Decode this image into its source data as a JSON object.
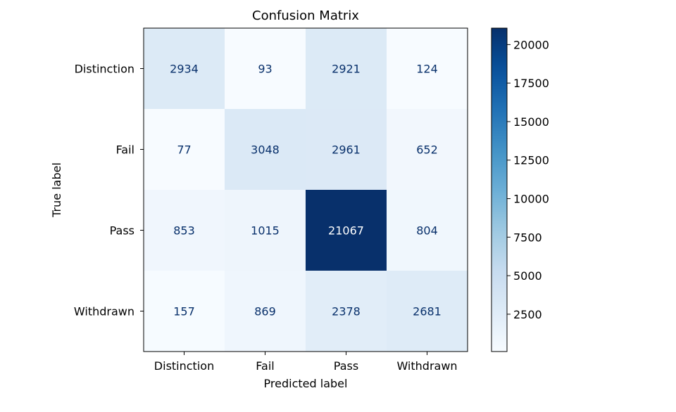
{
  "chart_data": {
    "type": "heatmap",
    "title": "Confusion Matrix",
    "xlabel": "Predicted label",
    "ylabel": "True label",
    "x_categories": [
      "Distinction",
      "Fail",
      "Pass",
      "Withdrawn"
    ],
    "y_categories": [
      "Distinction",
      "Fail",
      "Pass",
      "Withdrawn"
    ],
    "values": [
      [
        2934,
        93,
        2921,
        124
      ],
      [
        77,
        3048,
        2961,
        652
      ],
      [
        853,
        1015,
        21067,
        804
      ],
      [
        157,
        869,
        2378,
        2681
      ]
    ],
    "colormap": "Blues",
    "color_range": [
      77,
      21067
    ],
    "colorbar_ticks": [
      2500,
      5000,
      7500,
      10000,
      12500,
      15000,
      17500,
      20000
    ],
    "colorbar_tick_labels": [
      "2500",
      "5000",
      "7500",
      "10000",
      "12500",
      "15000",
      "17500",
      "20000"
    ],
    "text_color_light": "#ffffff",
    "text_color_dark": "#08306b"
  }
}
